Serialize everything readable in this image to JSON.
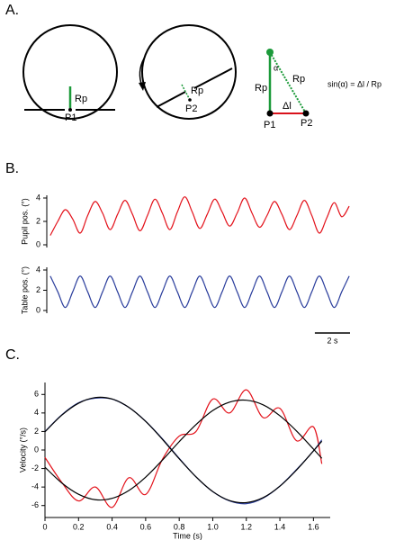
{
  "panel_a": {
    "label": "A.",
    "left": {
      "rp": "Rp",
      "p": "P1"
    },
    "middle": {
      "rp": "Rp",
      "p": "P2"
    },
    "triangle": {
      "alpha": "α",
      "rp_left": "Rp",
      "rp_diag": "Rp",
      "dl": "Δl",
      "p1": "P1",
      "p2": "P2"
    },
    "formula": "sin(α) = Δl / Rp"
  },
  "panel_b": {
    "label": "B."
  },
  "panel_c": {
    "label": "C."
  },
  "chart_data": [
    {
      "type": "line",
      "ylabel": "Pupil pos. (°)",
      "x": [
        0.2,
        0.625,
        1.05,
        1.475,
        1.9,
        2.325,
        2.75,
        3.175,
        3.6,
        4.025,
        4.45,
        4.875,
        5.3,
        5.725,
        6.15,
        6.575,
        7,
        7.425,
        7.85,
        8.275,
        8.7,
        9.125,
        9.55,
        9.975,
        10.4,
        10.825,
        11.25,
        11.675,
        12.1,
        12.525,
        12.95,
        13.375,
        13.8,
        14.225,
        14.65,
        15.075,
        15.5,
        15.925,
        16.35,
        16.775,
        17.2
      ],
      "series": [
        {
          "color": "#e3121b",
          "values": [
            0.8,
            2.0,
            3.0,
            2.2,
            1.0,
            2.5,
            3.7,
            2.7,
            1.3,
            2.6,
            3.8,
            2.6,
            1.2,
            2.5,
            3.9,
            2.7,
            1.3,
            2.8,
            4.1,
            2.8,
            1.4,
            2.6,
            3.9,
            2.8,
            1.6,
            2.7,
            4.0,
            2.7,
            1.5,
            2.5,
            3.7,
            2.6,
            1.3,
            2.5,
            3.8,
            2.5,
            1.0,
            2.3,
            3.6,
            2.4,
            3.3
          ]
        }
      ],
      "xlim": [
        0,
        17.4
      ],
      "ylim": [
        0,
        4
      ],
      "yticks": [
        0,
        2,
        4
      ]
    },
    {
      "type": "line",
      "ylabel": "Table pos. (°)",
      "x": [
        0.2,
        0.625,
        1.05,
        1.475,
        1.9,
        2.325,
        2.75,
        3.175,
        3.6,
        4.025,
        4.45,
        4.875,
        5.3,
        5.725,
        6.15,
        6.575,
        7,
        7.425,
        7.85,
        8.275,
        8.7,
        9.125,
        9.55,
        9.975,
        10.4,
        10.825,
        11.25,
        11.675,
        12.1,
        12.525,
        12.95,
        13.375,
        13.8,
        14.225,
        14.65,
        15.075,
        15.5,
        15.925,
        16.35,
        16.775,
        17.2
      ],
      "series": [
        {
          "color": "#2a3d9c",
          "values": [
            3.4,
            1.85,
            0.3,
            1.85,
            3.4,
            1.85,
            0.3,
            1.85,
            3.4,
            1.85,
            0.3,
            1.85,
            3.4,
            1.85,
            0.3,
            1.85,
            3.4,
            1.85,
            0.3,
            1.85,
            3.4,
            1.85,
            0.3,
            1.85,
            3.4,
            1.85,
            0.3,
            1.85,
            3.4,
            1.85,
            0.3,
            1.85,
            3.4,
            1.85,
            0.3,
            1.85,
            3.4,
            1.85,
            0.3,
            1.85,
            3.4
          ]
        }
      ],
      "xlim": [
        0,
        17.4
      ],
      "ylim": [
        0,
        4
      ],
      "yticks": [
        0,
        2,
        4
      ],
      "scale_bar": {
        "value": 2,
        "label": "2 s"
      }
    },
    {
      "type": "line",
      "ylabel": "Velocity (°/s)",
      "xlabel": "Time (s)",
      "x": [
        0,
        0.1,
        0.2,
        0.3,
        0.4,
        0.5,
        0.6,
        0.7,
        0.8,
        0.9,
        1.0,
        1.1,
        1.2,
        1.3,
        1.4,
        1.5,
        1.6,
        1.65
      ],
      "series": [
        {
          "color": "#e3121b",
          "values": [
            -0.8,
            -3.5,
            -5.5,
            -4.0,
            -6.2,
            -3.0,
            -4.8,
            -1.0,
            1.5,
            2.0,
            5.5,
            4.0,
            6.5,
            3.5,
            4.5,
            1.0,
            2.5,
            -1.5
          ]
        },
        {
          "color": "#2a3d9c",
          "values": [
            2.0,
            3.8,
            5.1,
            5.6,
            5.5,
            4.6,
            3.1,
            1.2,
            -0.9,
            -2.9,
            -4.5,
            -5.5,
            -5.8,
            -5.2,
            -3.9,
            -2.1,
            -0.1,
            1.1
          ]
        },
        {
          "color": "#000000",
          "values": [
            1.96,
            3.76,
            5.05,
            5.67,
            5.51,
            4.61,
            3.09,
            1.15,
            -0.95,
            -2.9,
            -4.49,
            -5.46,
            -5.68,
            -5.15,
            -3.91,
            -2.15,
            -0.1,
            0.95
          ]
        },
        {
          "color": "#000000",
          "values": [
            -1.86,
            -3.56,
            -4.78,
            -5.37,
            -5.22,
            -4.37,
            -2.93,
            -1.09,
            0.9,
            2.74,
            4.26,
            5.17,
            5.38,
            4.88,
            3.7,
            2.04,
            0.1,
            -0.9
          ]
        }
      ],
      "xlim": [
        0,
        1.7
      ],
      "ylim": [
        -7,
        7
      ],
      "xticks": [
        0,
        0.2,
        0.4,
        0.6,
        0.8,
        {
          "value": 1,
          "label": "1.0"
        },
        1.2,
        1.4,
        1.6
      ],
      "yticks": [
        -6,
        -4,
        -2,
        0,
        2,
        4,
        6
      ]
    }
  ]
}
